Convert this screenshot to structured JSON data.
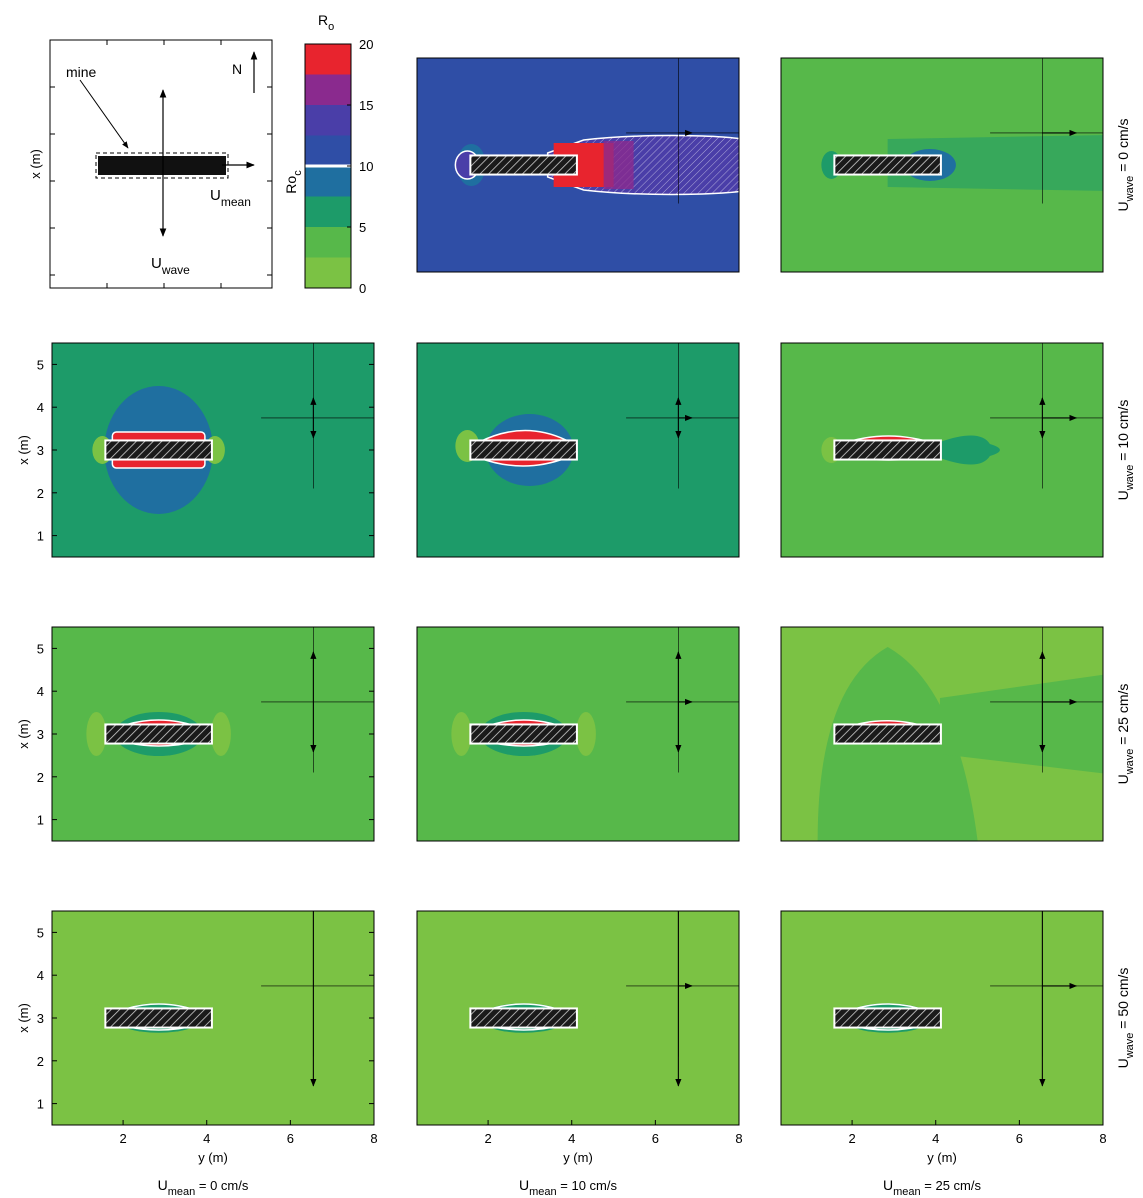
{
  "chart_data": {
    "type": "heatmap",
    "description_units": {
      "x_axis": "y (m)",
      "y_axis": "x (m)"
    },
    "xlabel": "y (m)",
    "ylabel": "x (m)",
    "xlim": [
      0.3,
      8.0
    ],
    "ylim": [
      0.5,
      5.5
    ],
    "xticks": [
      2,
      4,
      6,
      8
    ],
    "yticks": [
      1,
      2,
      3,
      4,
      5
    ],
    "mine": {
      "y_range": [
        1.6,
        4.1
      ],
      "x_range": [
        2.8,
        3.2
      ]
    },
    "current_origin": {
      "y": 6.55,
      "x": 3.75
    },
    "colorbar": {
      "title_main": "R",
      "title_sub": "o",
      "label_main": "Ro",
      "label_sub": "c",
      "ticks": [
        0,
        5,
        10,
        15,
        20
      ],
      "range": [
        0,
        20
      ],
      "critical_value": 10,
      "levels": [
        {
          "from": 0,
          "to": 2.5,
          "color": "#7bc244"
        },
        {
          "from": 2.5,
          "to": 5,
          "color": "#57b84a"
        },
        {
          "from": 5,
          "to": 7.5,
          "color": "#1d9b69"
        },
        {
          "from": 7.5,
          "to": 10,
          "color": "#1f6fa0"
        },
        {
          "from": 10,
          "to": 12.5,
          "color": "#2f4ea6"
        },
        {
          "from": 12.5,
          "to": 15,
          "color": "#4a3ea8"
        },
        {
          "from": 15,
          "to": 17.5,
          "color": "#8a2a8e"
        },
        {
          "from": 17.5,
          "to": 20,
          "color": "#e8242e"
        }
      ]
    },
    "schematic": {
      "ylabel": "x (m)",
      "mine_label": "mine",
      "north_label": "N",
      "umean_main": "U",
      "umean_sub": "mean",
      "uwave_main": "U",
      "uwave_sub": "wave"
    },
    "column_labels": [
      {
        "main": "U",
        "sub": "mean",
        "suffix": " = 0 cm/s"
      },
      {
        "main": "U",
        "sub": "mean",
        "suffix": " = 10 cm/s"
      },
      {
        "main": "U",
        "sub": "mean",
        "suffix": " = 25 cm/s"
      }
    ],
    "row_labels": [
      {
        "main": "U",
        "sub": "wave",
        "suffix": " = 0 cm/s"
      },
      {
        "main": "U",
        "sub": "wave",
        "suffix": " = 10 cm/s"
      },
      {
        "main": "U",
        "sub": "wave",
        "suffix": " = 25 cm/s"
      },
      {
        "main": "U",
        "sub": "wave",
        "suffix": " = 50 cm/s"
      }
    ],
    "panels": [
      {
        "row": 0,
        "col": 1,
        "u_mean_cm_s": 10,
        "u_wave_cm_s": 0,
        "background": "#2f4ea6",
        "critical_zone": "long downstream wake"
      },
      {
        "row": 0,
        "col": 2,
        "u_mean_cm_s": 25,
        "u_wave_cm_s": 0,
        "background": "#57b84a",
        "critical_zone": "near mine"
      },
      {
        "row": 1,
        "col": 0,
        "u_mean_cm_s": 0,
        "u_wave_cm_s": 10,
        "background": "#1d9b69",
        "critical_zone": "around mine"
      },
      {
        "row": 1,
        "col": 1,
        "u_mean_cm_s": 10,
        "u_wave_cm_s": 10,
        "background": "#1d9b69",
        "critical_zone": "around mine"
      },
      {
        "row": 1,
        "col": 2,
        "u_mean_cm_s": 25,
        "u_wave_cm_s": 10,
        "background": "#57b84a",
        "critical_zone": "on mine"
      },
      {
        "row": 2,
        "col": 0,
        "u_mean_cm_s": 0,
        "u_wave_cm_s": 25,
        "background": "#57b84a",
        "critical_zone": "on mine"
      },
      {
        "row": 2,
        "col": 1,
        "u_mean_cm_s": 10,
        "u_wave_cm_s": 25,
        "background": "#57b84a",
        "critical_zone": "on mine"
      },
      {
        "row": 2,
        "col": 2,
        "u_mean_cm_s": 25,
        "u_wave_cm_s": 25,
        "background": "#7bc244",
        "critical_zone": "on mine"
      },
      {
        "row": 3,
        "col": 0,
        "u_mean_cm_s": 0,
        "u_wave_cm_s": 50,
        "background": "#7bc244",
        "critical_zone": "on mine"
      },
      {
        "row": 3,
        "col": 1,
        "u_mean_cm_s": 10,
        "u_wave_cm_s": 50,
        "background": "#7bc244",
        "critical_zone": "on mine"
      },
      {
        "row": 3,
        "col": 2,
        "u_mean_cm_s": 25,
        "u_wave_cm_s": 50,
        "background": "#7bc244",
        "critical_zone": "on mine"
      }
    ]
  }
}
